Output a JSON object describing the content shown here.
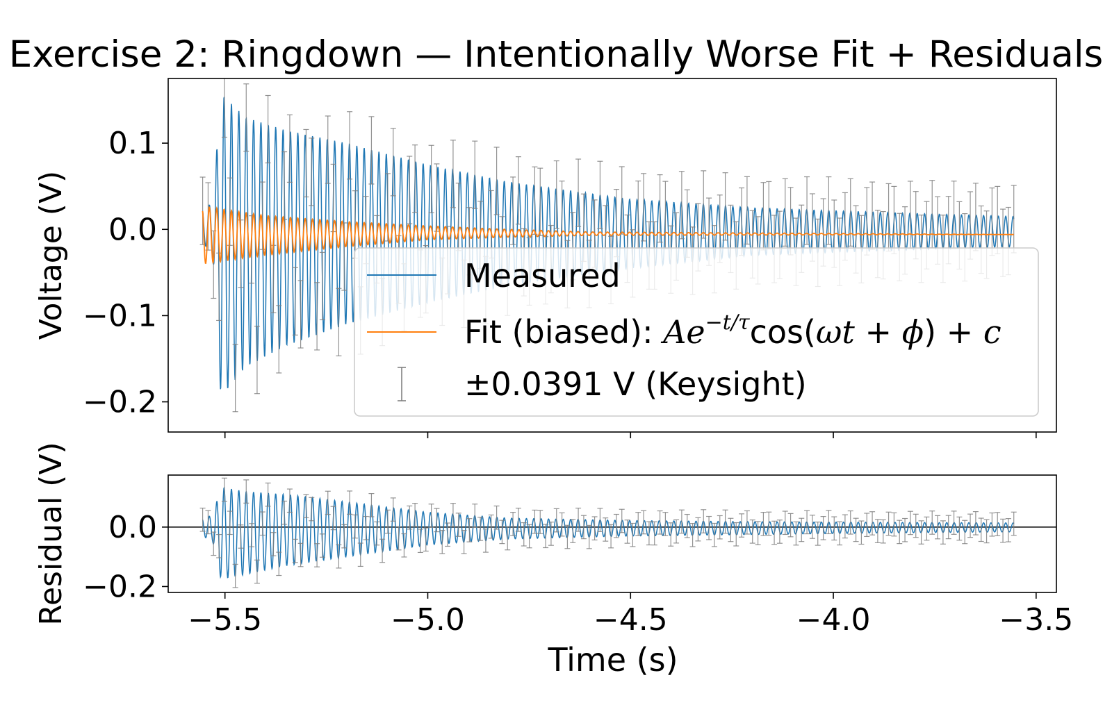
{
  "chart_data": {
    "title": "Exercise 2: Ringdown — Intentionally Worse Fit + Residuals",
    "type": "line",
    "xlabel": "Time (s)",
    "shared_x": true,
    "xlim": [
      -5.64,
      -3.45
    ],
    "xticks": [
      -5.5,
      -5.0,
      -4.5,
      -4.0,
      -3.5
    ],
    "xtick_labels": [
      "−5.5",
      "−5.0",
      "−4.5",
      "−4.0",
      "−3.5"
    ],
    "panels": [
      {
        "name": "main",
        "ylabel": "Voltage (V)",
        "ylim": [
          -0.235,
          0.175
        ],
        "yticks": [
          0.1,
          0.0,
          -0.1,
          -0.2
        ],
        "ytick_labels": [
          "0.1",
          "0.0",
          "−0.1",
          "−0.2"
        ],
        "legend_position": "lower-right",
        "series": [
          {
            "name": "Measured",
            "color": "#1f77b4",
            "kind": "damped-oscillation",
            "x_range": [
              -5.555,
              -3.555
            ],
            "amplitude_envelope": {
              "x": [
                -5.555,
                -5.53,
                -5.51,
                -5.45,
                -5.35,
                -5.2,
                -5.0,
                -4.8,
                -4.5,
                -4.2,
                -3.9,
                -3.555
              ],
              "upper": [
                0.025,
                0.03,
                0.158,
                0.13,
                0.115,
                0.1,
                0.075,
                0.055,
                0.035,
                0.025,
                0.02,
                0.015
              ],
              "lower": [
                -0.015,
                -0.03,
                -0.195,
                -0.16,
                -0.135,
                -0.11,
                -0.085,
                -0.065,
                -0.045,
                -0.03,
                -0.025,
                -0.02
              ]
            },
            "offset": -0.006,
            "oscillations_per_second": 55
          },
          {
            "name": "Fit (biased): Ae^{−t/τ}cos(ωt+φ)+c",
            "color": "#ff7f0e",
            "kind": "damped-oscillation",
            "x_range": [
              -5.555,
              -3.555
            ],
            "amplitude_envelope": {
              "x": [
                -5.555,
                -5.4,
                -5.2,
                -5.0,
                -4.8,
                -4.6,
                -3.555
              ],
              "upper": [
                0.027,
                0.016,
                0.009,
                0.004,
                0.0,
                -0.003,
                -0.006
              ],
              "lower": [
                -0.04,
                -0.03,
                -0.02,
                -0.012,
                -0.009,
                -0.007,
                -0.006
              ]
            },
            "offset": -0.006,
            "oscillations_per_second": 55
          },
          {
            "name": "±0.0391 V (Keysight)",
            "color": "#808080",
            "kind": "errorbars",
            "error": 0.0391,
            "x_range": [
              -5.555,
              -3.555
            ],
            "count": 150
          }
        ]
      },
      {
        "name": "residual",
        "ylabel": "Residual (V)",
        "ylim": [
          -0.22,
          0.175
        ],
        "yticks": [
          0.0,
          -0.2
        ],
        "ytick_labels": [
          "0.0",
          "−0.2"
        ],
        "zero_line": true,
        "series": [
          {
            "name": "Residual",
            "color": "#1f77b4",
            "kind": "damped-oscillation",
            "x_range": [
              -5.555,
              -3.555
            ],
            "amplitude_envelope": {
              "x": [
                -5.555,
                -5.53,
                -5.51,
                -5.45,
                -5.35,
                -5.2,
                -5.0,
                -4.8,
                -4.5,
                -4.2,
                -3.9,
                -3.555
              ],
              "upper": [
                0.03,
                0.04,
                0.135,
                0.12,
                0.11,
                0.085,
                0.05,
                0.03,
                0.022,
                0.018,
                0.016,
                0.014
              ],
              "lower": [
                -0.03,
                -0.05,
                -0.175,
                -0.16,
                -0.13,
                -0.1,
                -0.06,
                -0.04,
                -0.03,
                -0.025,
                -0.02,
                -0.016
              ]
            },
            "offset": 0.0,
            "oscillations_per_second": 55
          },
          {
            "name": "errorbars",
            "color": "#808080",
            "kind": "errorbars",
            "error": 0.0391,
            "x_range": [
              -5.555,
              -3.555
            ],
            "count": 150
          }
        ]
      }
    ]
  }
}
